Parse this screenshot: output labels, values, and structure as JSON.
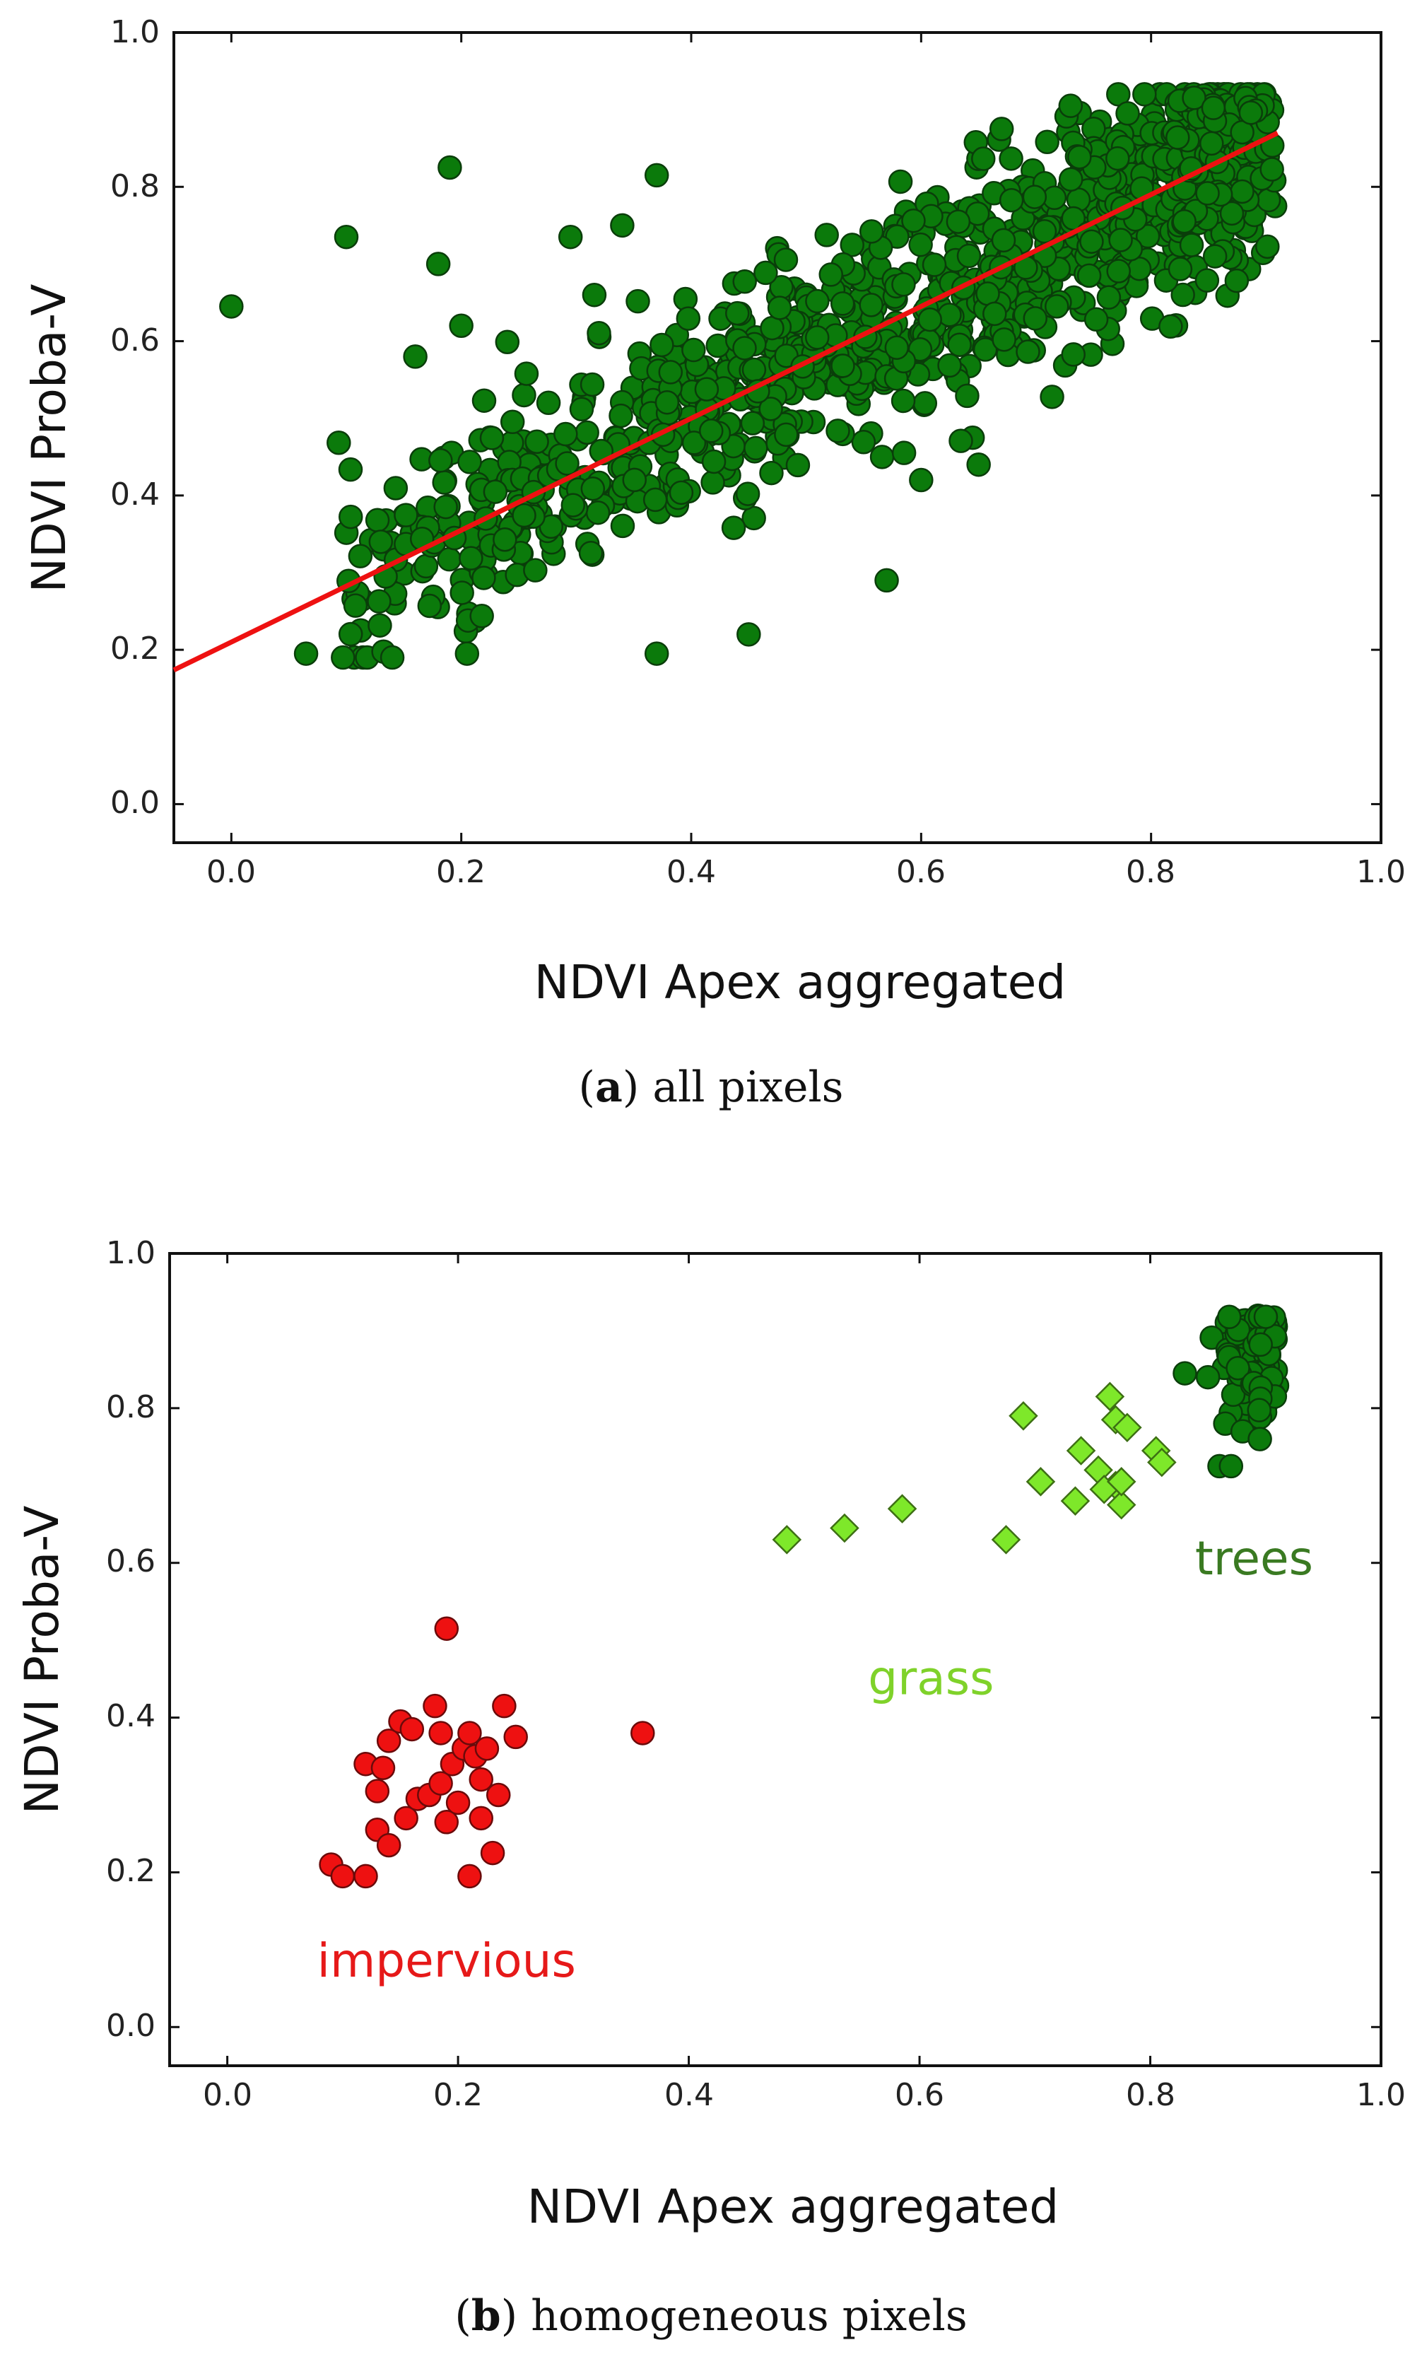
{
  "colors": {
    "trees": "#0b7a0b",
    "trees_edge": "#0a3d0a",
    "grass": "#7ee82a",
    "grass_edge": "#3d6f14",
    "impervious": "#ee1111",
    "impervious_edge": "#6b0a0a",
    "fit_line": "#ee1111",
    "label_trees": "#3a7a22",
    "label_grass": "#7fd22a",
    "label_impervious": "#e61919"
  },
  "chart_data": [
    {
      "id": "a",
      "type": "scatter",
      "caption_letter": "a",
      "caption_text": " all pixels",
      "xlabel": "NDVI Apex aggregated",
      "ylabel": "NDVI Proba-V",
      "xlim": [
        -0.05,
        1.0
      ],
      "ylim": [
        -0.05,
        1.0
      ],
      "xticks": [
        "0.0",
        "0.2",
        "0.4",
        "0.6",
        "0.8",
        "1.0"
      ],
      "yticks": [
        "0.0",
        "0.2",
        "0.4",
        "0.6",
        "0.8",
        "1.0"
      ],
      "fit_line": {
        "slope": 0.725,
        "intercept": 0.21,
        "x_range": [
          -0.05,
          0.91
        ]
      },
      "series": [
        {
          "name": "all pixels",
          "marker": "circle",
          "color_key": "trees",
          "outliers": [
            [
              0.0,
              0.645
            ],
            [
              0.1,
              0.735
            ],
            [
              0.18,
              0.7
            ],
            [
              0.19,
              0.825
            ],
            [
              0.295,
              0.735
            ],
            [
              0.37,
              0.815
            ],
            [
              0.34,
              0.75
            ],
            [
              0.73,
              0.905
            ],
            [
              0.67,
              0.875
            ],
            [
              0.57,
              0.29
            ],
            [
              0.45,
              0.22
            ],
            [
              0.37,
              0.195
            ],
            [
              0.065,
              0.195
            ],
            [
              0.14,
              0.19
            ],
            [
              0.205,
              0.195
            ],
            [
              0.16,
              0.58
            ],
            [
              0.2,
              0.62
            ],
            [
              0.13,
              0.34
            ],
            [
              0.65,
              0.44
            ],
            [
              0.6,
              0.42
            ]
          ],
          "cloud": {
            "count": 1000,
            "x_range": [
              0.09,
              0.9
            ],
            "slope": 0.725,
            "intercept": 0.21,
            "spread_y": 0.07,
            "y_range": [
              0.19,
              0.92
            ]
          },
          "cluster": {
            "count": 120,
            "x_range": [
              0.82,
              0.91
            ],
            "y_range": [
              0.66,
              0.92
            ]
          }
        }
      ]
    },
    {
      "id": "b",
      "type": "scatter",
      "caption_letter": "b",
      "caption_text": " homogeneous pixels",
      "xlabel": "NDVI Apex aggregated",
      "ylabel": "NDVI Proba-V",
      "xlim": [
        -0.05,
        1.0
      ],
      "ylim": [
        -0.05,
        1.0
      ],
      "xticks": [
        "0.0",
        "0.2",
        "0.4",
        "0.6",
        "0.8",
        "1.0"
      ],
      "yticks": [
        "0.0",
        "0.2",
        "0.4",
        "0.6",
        "0.8",
        "1.0"
      ],
      "annotations": [
        {
          "text": "trees",
          "x": 0.89,
          "y": 0.585,
          "color_key": "label_trees"
        },
        {
          "text": "grass",
          "x": 0.61,
          "y": 0.43,
          "color_key": "label_grass"
        },
        {
          "text": "impervious",
          "x": 0.19,
          "y": 0.065,
          "color_key": "label_impervious"
        }
      ],
      "series": [
        {
          "name": "impervious",
          "marker": "circle",
          "color_key": "impervious",
          "points": [
            [
              0.09,
              0.21
            ],
            [
              0.1,
              0.195
            ],
            [
              0.12,
              0.195
            ],
            [
              0.12,
              0.34
            ],
            [
              0.13,
              0.305
            ],
            [
              0.13,
              0.255
            ],
            [
              0.135,
              0.335
            ],
            [
              0.14,
              0.235
            ],
            [
              0.14,
              0.37
            ],
            [
              0.15,
              0.395
            ],
            [
              0.155,
              0.27
            ],
            [
              0.16,
              0.385
            ],
            [
              0.165,
              0.295
            ],
            [
              0.175,
              0.3
            ],
            [
              0.18,
              0.415
            ],
            [
              0.185,
              0.315
            ],
            [
              0.185,
              0.38
            ],
            [
              0.19,
              0.265
            ],
            [
              0.19,
              0.515
            ],
            [
              0.195,
              0.34
            ],
            [
              0.2,
              0.29
            ],
            [
              0.205,
              0.36
            ],
            [
              0.21,
              0.195
            ],
            [
              0.21,
              0.38
            ],
            [
              0.215,
              0.35
            ],
            [
              0.22,
              0.32
            ],
            [
              0.22,
              0.27
            ],
            [
              0.225,
              0.36
            ],
            [
              0.23,
              0.225
            ],
            [
              0.235,
              0.3
            ],
            [
              0.24,
              0.415
            ],
            [
              0.25,
              0.375
            ],
            [
              0.36,
              0.38
            ]
          ]
        },
        {
          "name": "grass",
          "marker": "diamond",
          "color_key": "grass",
          "points": [
            [
              0.485,
              0.63
            ],
            [
              0.535,
              0.645
            ],
            [
              0.585,
              0.67
            ],
            [
              0.675,
              0.63
            ],
            [
              0.69,
              0.79
            ],
            [
              0.705,
              0.705
            ],
            [
              0.735,
              0.68
            ],
            [
              0.74,
              0.745
            ],
            [
              0.755,
              0.72
            ],
            [
              0.765,
              0.815
            ],
            [
              0.77,
              0.785
            ],
            [
              0.77,
              0.7
            ],
            [
              0.775,
              0.675
            ],
            [
              0.78,
              0.775
            ],
            [
              0.805,
              0.745
            ],
            [
              0.81,
              0.73
            ],
            [
              0.76,
              0.695
            ],
            [
              0.775,
              0.705
            ]
          ]
        },
        {
          "name": "trees",
          "marker": "circle",
          "color_key": "trees",
          "points": [
            [
              0.83,
              0.845
            ],
            [
              0.85,
              0.84
            ],
            [
              0.86,
              0.725
            ],
            [
              0.87,
              0.725
            ],
            [
              0.865,
              0.78
            ],
            [
              0.88,
              0.77
            ],
            [
              0.895,
              0.76
            ]
          ],
          "cluster": {
            "count": 90,
            "x_range": [
              0.85,
              0.91
            ],
            "y_range": [
              0.76,
              0.92
            ]
          }
        }
      ]
    }
  ]
}
